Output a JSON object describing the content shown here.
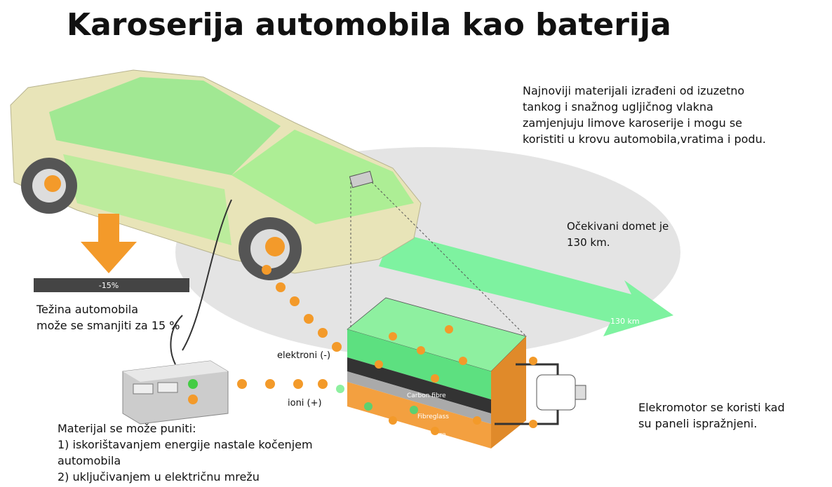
{
  "title": "Karoserija automobila kao baterija",
  "materials_note": {
    "lines": [
      "Najnoviji materijali izrađeni od izuzetno",
      "tankog i snažnog ugljičnog vlakna",
      "zamjenjuju limove karoserije i mogu se",
      "koristiti u krovu automobila,vratima i podu."
    ]
  },
  "range_note": {
    "lines": [
      "Očekivani domet je",
      "130 km."
    ]
  },
  "weight_note": {
    "lines": [
      "Težina automobila",
      "može se smanjiti za 15 %"
    ]
  },
  "motor_note": {
    "lines": [
      "Elekromotor se koristi kad",
      "su paneli ispražnjeni."
    ]
  },
  "charging_note": {
    "lines": [
      "Materijal se može puniti:",
      "1) iskorištavanjem energije nastale kočenjem",
      "automobila",
      "2) uključivanjem u električnu mrežu"
    ]
  },
  "labels": {
    "weight_reduction": "-15%",
    "range": "130 km",
    "electrons": "elektroni (-)",
    "ions": "ioni (+)",
    "layers": [
      "Carbon fibre",
      "Fibreglass",
      "Carbon fibre"
    ]
  }
}
